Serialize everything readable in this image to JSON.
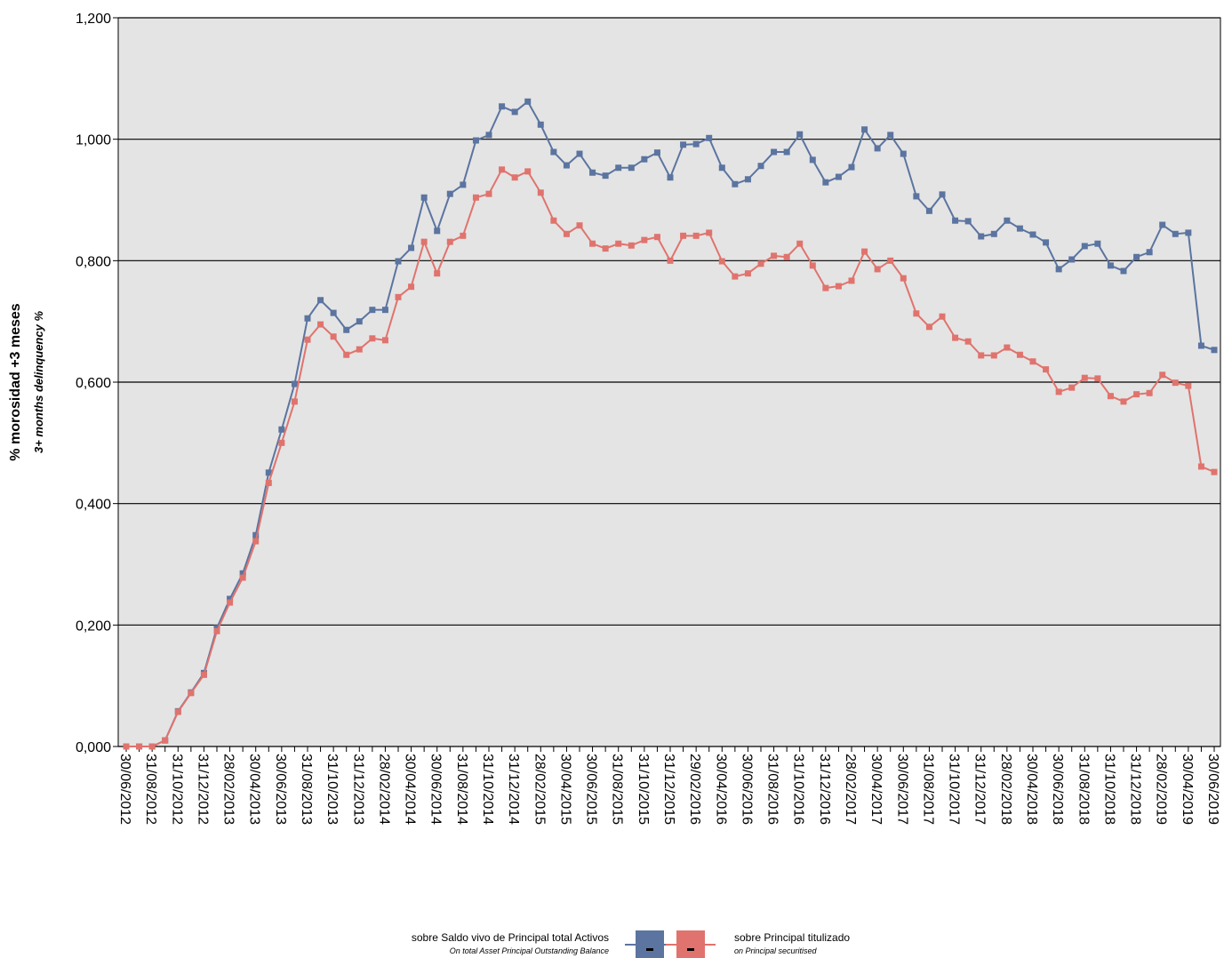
{
  "chart_data": {
    "type": "line",
    "ylabel": "% morosidad +3 meses",
    "ylabel_en": "3+ months delinquency %",
    "categories": [
      "30/06/2012",
      null,
      "31/08/2012",
      null,
      "31/10/2012",
      null,
      "31/12/2012",
      null,
      "28/02/2013",
      null,
      "30/04/2013",
      null,
      "30/06/2013",
      null,
      "31/08/2013",
      null,
      "31/10/2013",
      null,
      "31/12/2013",
      null,
      "28/02/2014",
      null,
      "30/04/2014",
      null,
      "30/06/2014",
      null,
      "31/08/2014",
      null,
      "31/10/2014",
      null,
      "31/12/2014",
      null,
      "28/02/2015",
      null,
      "30/04/2015",
      null,
      "30/06/2015",
      null,
      "31/08/2015",
      null,
      "31/10/2015",
      null,
      "31/12/2015",
      null,
      "29/02/2016",
      null,
      "30/04/2016",
      null,
      "30/06/2016",
      null,
      "31/08/2016",
      null,
      "31/10/2016",
      null,
      "31/12/2016",
      null,
      "28/02/2017",
      null,
      "30/04/2017",
      null,
      "30/06/2017",
      null,
      "31/08/2017",
      null,
      "31/10/2017",
      null,
      "31/12/2017",
      null,
      "28/02/2018",
      null,
      "30/04/2018",
      null,
      "30/06/2018",
      null,
      "31/08/2018",
      null,
      "31/10/2018",
      null,
      "31/12/2018",
      null,
      "28/02/2019",
      null,
      "30/04/2019",
      null,
      "30/06/2019"
    ],
    "series": [
      {
        "name": "sobre Saldo vivo de Principal total Activos",
        "name_en": "On total Asset Principal Outstanding Balance",
        "color": "#5b74a0",
        "values": [
          0,
          0,
          0,
          0.01,
          0.058,
          0.089,
          0.121,
          0.195,
          0.243,
          0.285,
          0.348,
          0.451,
          0.522,
          0.597,
          0.705,
          0.735,
          0.714,
          0.686,
          0.7,
          0.719,
          0.719,
          0.799,
          0.821,
          0.904,
          0.849,
          0.91,
          0.925,
          0.998,
          1.007,
          1.054,
          1.045,
          1.062,
          1.024,
          0.979,
          0.957,
          0.976,
          0.945,
          0.94,
          0.953,
          0.953,
          0.967,
          0.978,
          0.937,
          0.991,
          0.992,
          1.002,
          0.953,
          0.926,
          0.934,
          0.956,
          0.979,
          0.979,
          1.008,
          0.966,
          0.929,
          0.938,
          0.954,
          1.016,
          0.985,
          1.007,
          0.976,
          0.906,
          0.882,
          0.909,
          0.866,
          0.865,
          0.84,
          0.844,
          0.866,
          0.853,
          0.843,
          0.83,
          0.786,
          0.802,
          0.824,
          0.828,
          0.792,
          0.783,
          0.806,
          0.814,
          0.859,
          0.844,
          0.846,
          0.66,
          0.653
        ]
      },
      {
        "name": "sobre Principal titulizado",
        "name_en": "on Principal securitised",
        "color": "#e0736d",
        "values": [
          0,
          0,
          0,
          0.01,
          0.057,
          0.088,
          0.118,
          0.19,
          0.237,
          0.278,
          0.338,
          0.434,
          0.5,
          0.568,
          0.67,
          0.695,
          0.675,
          0.645,
          0.654,
          0.672,
          0.669,
          0.74,
          0.757,
          0.831,
          0.779,
          0.831,
          0.841,
          0.904,
          0.91,
          0.95,
          0.937,
          0.947,
          0.912,
          0.866,
          0.844,
          0.858,
          0.828,
          0.82,
          0.828,
          0.825,
          0.834,
          0.839,
          0.8,
          0.841,
          0.841,
          0.846,
          0.799,
          0.774,
          0.779,
          0.795,
          0.808,
          0.806,
          0.828,
          0.792,
          0.755,
          0.758,
          0.767,
          0.815,
          0.786,
          0.8,
          0.771,
          0.713,
          0.691,
          0.708,
          0.673,
          0.667,
          0.644,
          0.644,
          0.657,
          0.645,
          0.634,
          0.621,
          0.584,
          0.591,
          0.607,
          0.606,
          0.577,
          0.568,
          0.58,
          0.582,
          0.612,
          0.599,
          0.594,
          0.461,
          0.452
        ]
      }
    ],
    "ylim": [
      0,
      1.2
    ],
    "yticks": [
      {
        "value": 0,
        "label": "0,000"
      },
      {
        "value": 0.2,
        "label": "0,200"
      },
      {
        "value": 0.4,
        "label": "0,400"
      },
      {
        "value": 0.6,
        "label": "0,600"
      },
      {
        "value": 0.8,
        "label": "0,800"
      },
      {
        "value": 1.0,
        "label": "1,000"
      },
      {
        "value": 1.2,
        "label": "1,200"
      }
    ],
    "grid": true
  }
}
